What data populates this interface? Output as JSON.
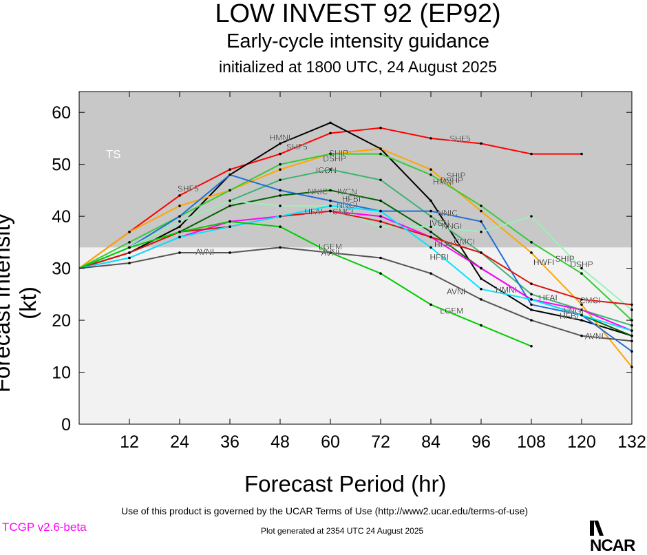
{
  "title": "LOW INVEST 92 (EP92)",
  "subtitle": "Early-cycle intensity guidance",
  "init_line": "initialized at 1800 UTC, 24 August 2025",
  "footer": {
    "terms": "Use of this product is governed by the UCAR Terms of Use (http://www2.ucar.edu/terms-of-use)",
    "version": "TCGP v2.6-beta",
    "generated": "Plot generated at 2354 UTC   24 August 2025",
    "logo_text": "NCAR"
  },
  "chart_data": {
    "type": "line",
    "xlabel": "Forecast Period (hr)",
    "ylabel": "Forecast Intensity (kt)",
    "xlim": [
      0,
      132
    ],
    "ylim": [
      0,
      64
    ],
    "xticks": [
      12,
      24,
      36,
      48,
      60,
      72,
      84,
      96,
      108,
      120,
      132
    ],
    "yticks": [
      0,
      10,
      20,
      30,
      40,
      50,
      60
    ],
    "bands": [
      {
        "label": "TS",
        "from": 34,
        "to": 64,
        "color": "#c8c8c8"
      },
      {
        "label": "",
        "from": 0,
        "to": 34,
        "color": "#f2f2f2"
      }
    ],
    "series": [
      {
        "name": "SHF5",
        "color": "#ff0000",
        "x": [
          0,
          12,
          24,
          36,
          48,
          60,
          72,
          84,
          96,
          108,
          120
        ],
        "y": [
          30,
          37,
          44,
          49,
          52,
          56,
          57,
          55,
          54,
          52,
          52
        ]
      },
      {
        "name": "HMNI",
        "color": "#000000",
        "x": [
          0,
          12,
          24,
          36,
          48,
          60,
          72,
          84,
          96,
          108,
          120,
          132
        ],
        "y": [
          30,
          33,
          38,
          48,
          54,
          58,
          53,
          43,
          28,
          22,
          20,
          17
        ]
      },
      {
        "name": "SHIP",
        "color": "#ffa500",
        "x": [
          0,
          12,
          24,
          36,
          48,
          60,
          72,
          84,
          96,
          108,
          120,
          132
        ],
        "y": [
          30,
          37,
          42,
          45,
          49,
          52,
          53,
          49,
          41,
          33,
          23,
          11
        ]
      },
      {
        "name": "DSHP",
        "color": "#33cc33",
        "x": [
          0,
          12,
          24,
          36,
          48,
          60,
          72,
          84,
          96,
          108,
          120,
          132
        ],
        "y": [
          30,
          35,
          40,
          45,
          50,
          52,
          52,
          48,
          42,
          35,
          29,
          20
        ]
      },
      {
        "name": "ICON",
        "color": "#3cb371",
        "x": [
          0,
          12,
          24,
          36,
          48,
          60,
          72,
          84,
          96,
          108,
          120,
          132
        ],
        "y": [
          30,
          34,
          39,
          43,
          47,
          49,
          47,
          40,
          33,
          25,
          22,
          19
        ]
      },
      {
        "name": "NNIC",
        "color": "#1e6fd9",
        "x": [
          0,
          12,
          24,
          36,
          48,
          60,
          72,
          84,
          96,
          108,
          120,
          132
        ],
        "y": [
          30,
          34,
          40,
          48,
          45,
          43,
          41,
          41,
          39,
          23,
          21,
          14
        ]
      },
      {
        "name": "IVCN",
        "color": "#006400",
        "x": [
          0,
          12,
          24,
          36,
          48,
          60,
          72,
          84,
          96,
          108,
          120,
          132
        ],
        "y": [
          30,
          33,
          37,
          42,
          44,
          45,
          43,
          37,
          30,
          24,
          21,
          17
        ]
      },
      {
        "name": "NNGI",
        "color": "#9bf0b8",
        "x": [
          0,
          12,
          24,
          36,
          48,
          60,
          72,
          84,
          96,
          108,
          120,
          132
        ],
        "y": [
          30,
          34,
          39,
          43,
          42,
          42,
          38,
          38,
          37,
          40,
          30,
          22
        ]
      },
      {
        "name": "HFAI",
        "color": "#ff00ff",
        "x": [
          0,
          12,
          24,
          36,
          48,
          60,
          72,
          84,
          96,
          108,
          120,
          132
        ],
        "y": [
          30,
          32,
          36,
          39,
          40,
          41,
          40,
          36,
          30,
          24,
          22,
          18
        ]
      },
      {
        "name": "CMCI",
        "color": "#dd1111",
        "x": [
          0,
          12,
          24,
          36,
          48,
          60,
          72,
          84,
          96,
          108,
          120,
          132
        ],
        "y": [
          30,
          33,
          37,
          38,
          40,
          41,
          39,
          36,
          33,
          27,
          24,
          23
        ]
      },
      {
        "name": "HFBI",
        "color": "#00e5ff",
        "x": [
          0,
          12,
          24,
          36,
          48,
          60,
          72,
          84,
          96,
          108,
          120,
          132
        ],
        "y": [
          30,
          32,
          36,
          38,
          40,
          42,
          41,
          34,
          26,
          24,
          21,
          18
        ]
      },
      {
        "name": "LGEM",
        "color": "#00cc00",
        "x": [
          0,
          12,
          24,
          36,
          48,
          60,
          72,
          84,
          96,
          108
        ],
        "y": [
          30,
          34,
          37,
          39,
          38,
          33,
          29,
          23,
          19,
          15
        ]
      },
      {
        "name": "AVNI",
        "color": "#555555",
        "x": [
          0,
          12,
          24,
          36,
          48,
          60,
          72,
          84,
          96,
          108,
          120,
          132
        ],
        "y": [
          30,
          31,
          33,
          33,
          34,
          33,
          32,
          29,
          24,
          20,
          17,
          16
        ]
      }
    ],
    "annotations": [
      {
        "text": "HMNI",
        "x": 48,
        "y": 55
      },
      {
        "text": "SHF5",
        "x": 52,
        "y": 53.2
      },
      {
        "text": "SHF5",
        "x": 26,
        "y": 45.2
      },
      {
        "text": "SHIP",
        "x": 62,
        "y": 52
      },
      {
        "text": "DSHP",
        "x": 61,
        "y": 51
      },
      {
        "text": "ICON",
        "x": 59,
        "y": 48.7
      },
      {
        "text": "NNIC",
        "x": 57,
        "y": 44.6
      },
      {
        "text": "IVCN",
        "x": 64,
        "y": 44.6
      },
      {
        "text": "NNGI",
        "x": 64,
        "y": 42
      },
      {
        "text": "HFBI",
        "x": 65,
        "y": 43.2
      },
      {
        "text": "HFAI",
        "x": 56,
        "y": 40.8
      },
      {
        "text": "CMCI",
        "x": 63,
        "y": 40.8
      },
      {
        "text": "LGEM",
        "x": 60,
        "y": 34
      },
      {
        "text": "AVNI",
        "x": 30,
        "y": 33
      },
      {
        "text": "AVNI",
        "x": 60,
        "y": 32.8
      },
      {
        "text": "SHF5",
        "x": 91,
        "y": 54.8
      },
      {
        "text": "HMNI",
        "x": 87,
        "y": 46.5
      },
      {
        "text": "SHIP",
        "x": 90,
        "y": 47.7
      },
      {
        "text": "DSHP",
        "x": 89,
        "y": 46.8
      },
      {
        "text": "NNIC",
        "x": 88,
        "y": 40.5
      },
      {
        "text": "IVCN",
        "x": 86,
        "y": 38.6
      },
      {
        "text": "NNGI",
        "x": 89,
        "y": 38
      },
      {
        "text": "HFAI",
        "x": 87,
        "y": 34.5
      },
      {
        "text": "CMCI",
        "x": 92,
        "y": 35
      },
      {
        "text": "HFBI",
        "x": 86,
        "y": 32
      },
      {
        "text": "AVNI",
        "x": 90,
        "y": 25.4
      },
      {
        "text": "LGEM",
        "x": 89,
        "y": 21.7
      },
      {
        "text": "HMNI",
        "x": 102,
        "y": 25.7
      },
      {
        "text": "HWFI",
        "x": 111,
        "y": 31
      },
      {
        "text": "SHIP",
        "x": 116,
        "y": 31.7
      },
      {
        "text": "DSHP",
        "x": 120,
        "y": 30.6
      },
      {
        "text": "HFAI",
        "x": 112,
        "y": 24.2
      },
      {
        "text": "CMCI",
        "x": 122,
        "y": 23.7
      },
      {
        "text": "NNGI",
        "x": 118,
        "y": 21.6
      },
      {
        "text": "HFBI",
        "x": 117,
        "y": 20.7
      },
      {
        "text": "AVNI",
        "x": 123,
        "y": 16.8
      }
    ]
  }
}
